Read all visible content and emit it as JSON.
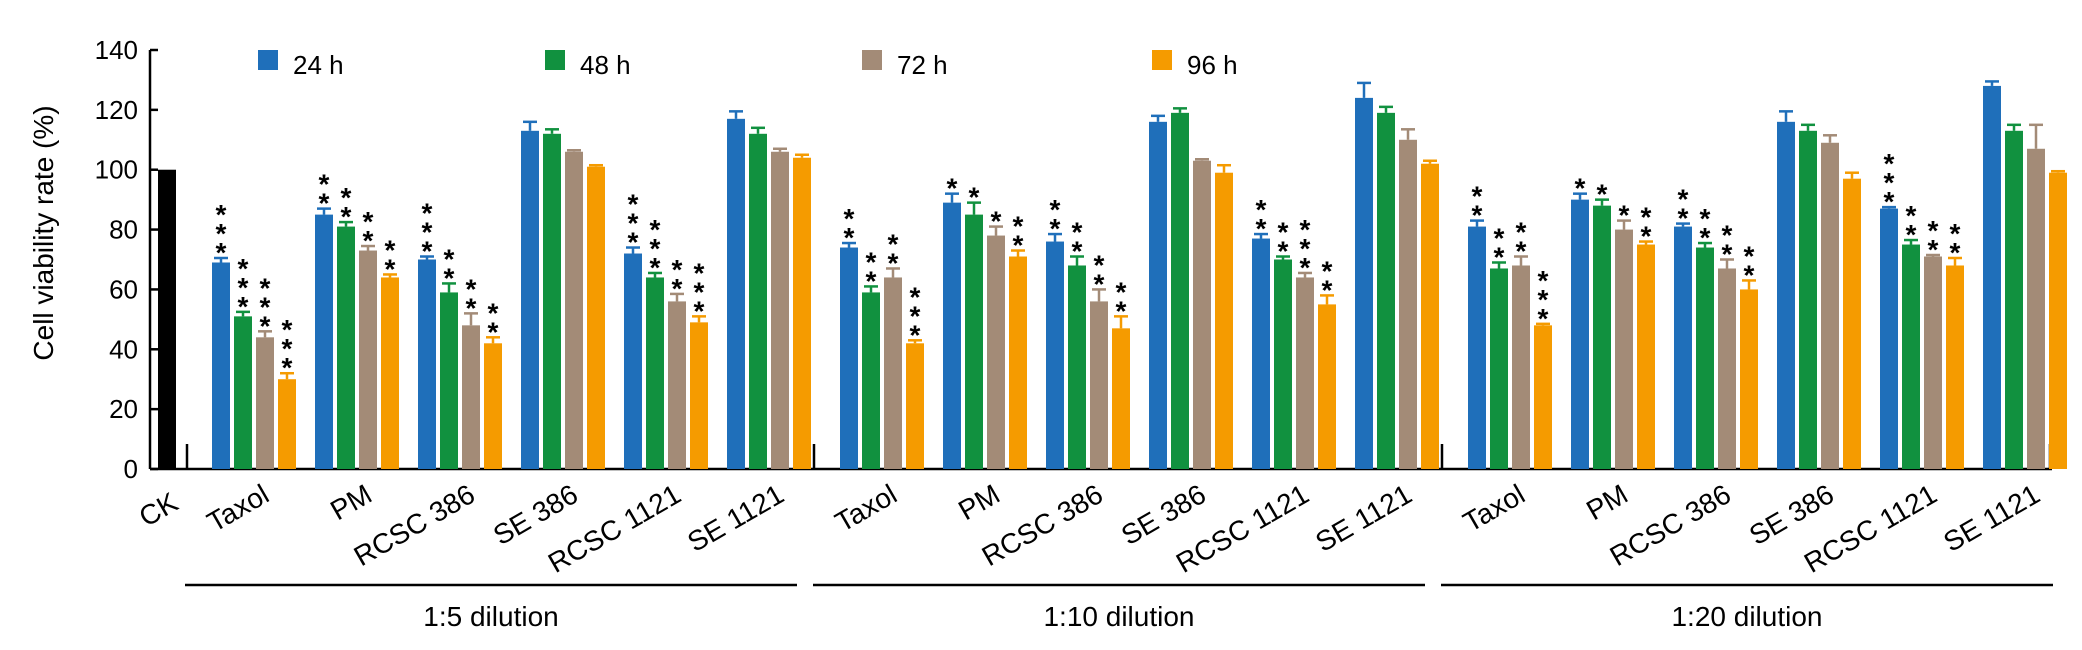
{
  "chart_data": {
    "type": "bar",
    "ylabel": "Cell viability rate (%)",
    "ylim": [
      0,
      140
    ],
    "y_ticks": [
      "0",
      "20",
      "40",
      "60",
      "80",
      "100",
      "120",
      "140"
    ],
    "grid": false,
    "legend_position": "top",
    "control": {
      "label": "CK",
      "value": 100,
      "color": "#000000"
    },
    "series": [
      {
        "name": "24 h",
        "color": "#1f6fba"
      },
      {
        "name": "48 h",
        "color": "#11913f"
      },
      {
        "name": "72 h",
        "color": "#a38b77"
      },
      {
        "name": "96 h",
        "color": "#f59b00"
      }
    ],
    "groups": [
      {
        "label": "1:5 dilution",
        "treatments": [
          {
            "name": "Taxol",
            "values": [
              69,
              51,
              44,
              30
            ],
            "errors": [
              1.5,
              1.5,
              2,
              2
            ],
            "stars": [
              "***",
              "***",
              "***",
              "***"
            ]
          },
          {
            "name": "PM",
            "values": [
              85,
              81,
              73,
              64
            ],
            "errors": [
              2,
              1.5,
              1.5,
              1
            ],
            "stars": [
              "**",
              "**",
              "**",
              "**"
            ]
          },
          {
            "name": "RCSC 386",
            "values": [
              70,
              59,
              48,
              42
            ],
            "errors": [
              1,
              3,
              4,
              2
            ],
            "stars": [
              "***",
              "**",
              "**",
              "**"
            ]
          },
          {
            "name": "SE 386",
            "values": [
              113,
              112,
              106,
              101
            ],
            "errors": [
              3,
              1.5,
              0.5,
              0.5
            ],
            "stars": [
              "",
              "",
              "",
              ""
            ]
          },
          {
            "name": "RCSC 1121",
            "values": [
              72,
              64,
              56,
              49
            ],
            "errors": [
              2,
              1.5,
              2.5,
              2
            ],
            "stars": [
              "***",
              "***",
              "**",
              "***"
            ]
          },
          {
            "name": "SE 1121",
            "values": [
              117,
              112,
              106,
              104
            ],
            "errors": [
              2.5,
              2,
              1,
              1
            ],
            "stars": [
              "",
              "",
              "",
              ""
            ]
          }
        ]
      },
      {
        "label": "1:10 dilution",
        "treatments": [
          {
            "name": "Taxol",
            "values": [
              74,
              59,
              64,
              42
            ],
            "errors": [
              1.5,
              2,
              3,
              1
            ],
            "stars": [
              "**",
              "**",
              "**",
              "***"
            ]
          },
          {
            "name": "PM",
            "values": [
              89,
              85,
              78,
              71
            ],
            "errors": [
              3,
              4,
              3,
              2
            ],
            "stars": [
              "*",
              "*",
              "*",
              "**"
            ]
          },
          {
            "name": "RCSC 386",
            "values": [
              76,
              68,
              56,
              47
            ],
            "errors": [
              2.5,
              3,
              4,
              4
            ],
            "stars": [
              "**",
              "**",
              "**",
              "**"
            ]
          },
          {
            "name": "SE 386",
            "values": [
              116,
              119,
              103,
              99
            ],
            "errors": [
              2,
              1.5,
              0.5,
              2.5
            ],
            "stars": [
              "",
              "",
              "",
              ""
            ]
          },
          {
            "name": "RCSC 1121",
            "values": [
              77,
              70,
              64,
              55
            ],
            "errors": [
              1.5,
              1,
              1.5,
              3
            ],
            "stars": [
              "**",
              "**",
              "***",
              "**"
            ]
          },
          {
            "name": "SE 1121",
            "values": [
              124,
              119,
              110,
              102
            ],
            "errors": [
              5,
              2,
              3.5,
              1
            ],
            "stars": [
              "",
              "",
              "",
              ""
            ]
          }
        ]
      },
      {
        "label": "1:20 dilution",
        "treatments": [
          {
            "name": "Taxol",
            "values": [
              81,
              67,
              68,
              48
            ],
            "errors": [
              2,
              2,
              3,
              0.5
            ],
            "stars": [
              "**",
              "**",
              "**",
              "***"
            ]
          },
          {
            "name": "PM",
            "values": [
              90,
              88,
              80,
              75
            ],
            "errors": [
              2,
              2,
              3,
              1
            ],
            "stars": [
              "*",
              "*",
              "*",
              "**"
            ]
          },
          {
            "name": "RCSC 386",
            "values": [
              81,
              74,
              67,
              60
            ],
            "errors": [
              1,
              1.5,
              3,
              3
            ],
            "stars": [
              "**",
              "**",
              "**",
              "**"
            ]
          },
          {
            "name": "SE 386",
            "values": [
              116,
              113,
              109,
              97
            ],
            "errors": [
              3.5,
              2,
              2.5,
              2
            ],
            "stars": [
              "",
              "",
              "",
              ""
            ]
          },
          {
            "name": "RCSC 1121",
            "values": [
              87,
              75,
              71,
              68
            ],
            "errors": [
              0.5,
              1.5,
              0.5,
              2.5
            ],
            "stars": [
              "***",
              "**",
              "**",
              "**"
            ]
          },
          {
            "name": "SE 1121",
            "values": [
              128,
              113,
              107,
              99
            ],
            "errors": [
              1.5,
              2,
              8,
              0.5
            ],
            "stars": [
              "",
              "",
              "",
              ""
            ]
          }
        ]
      }
    ]
  }
}
